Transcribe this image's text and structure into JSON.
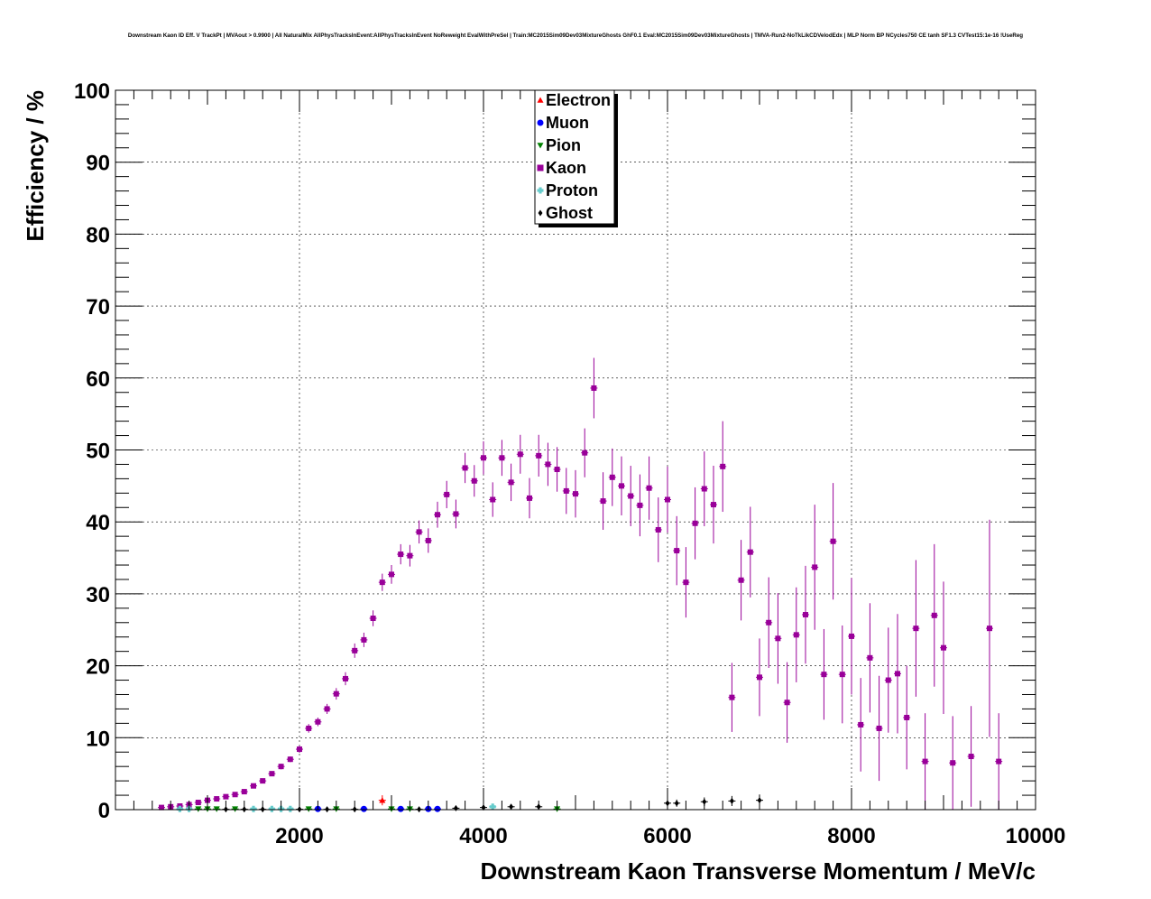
{
  "chart_data": {
    "type": "scatter",
    "title": "Downstream Kaon ID Eff. V TrackPt | MVAout > 0.9900 | All NaturalMix AllPhysTracksInEvent:AllPhysTracksInEvent NoReweight EvalWithPreSel | Train:MC2015Sim09Dev03MixtureGhosts GhF0.1 Eval:MC2015Sim09Dev03MixtureGhosts | TMVA-Run2-NoTkLikCDVelodEdx | MLP Norm BP NCycles750 CE tanh SF1.3 CVTest15:1e-16 !UseReg",
    "xlabel": "Downstream Kaon Transverse Momentum / MeV/c",
    "ylabel": "Efficiency / %",
    "xlim": [
      0,
      10000
    ],
    "ylim": [
      0,
      100
    ],
    "x_ticks": [
      "2000",
      "4000",
      "6000",
      "8000",
      "10000"
    ],
    "y_ticks": [
      "0",
      "10",
      "20",
      "30",
      "40",
      "50",
      "60",
      "70",
      "80",
      "90",
      "100"
    ],
    "grid": true,
    "legend_position": "top-center",
    "series": [
      {
        "name": "Electron",
        "color": "#ff0000",
        "marker": "triangle-up",
        "points": [
          [
            2900,
            1.3,
            0.7
          ]
        ]
      },
      {
        "name": "Muon",
        "color": "#0000ff",
        "marker": "circle",
        "points": [
          [
            2200,
            0.1,
            0
          ],
          [
            2700,
            0.1,
            0
          ],
          [
            3100,
            0.1,
            0
          ],
          [
            3400,
            0.1,
            0
          ],
          [
            3500,
            0.1,
            0
          ]
        ]
      },
      {
        "name": "Pion",
        "color": "#008000",
        "marker": "triangle-down",
        "points": [
          [
            900,
            0.1,
            0
          ],
          [
            1000,
            0.1,
            0
          ],
          [
            1100,
            0.1,
            0
          ],
          [
            1300,
            0.1,
            0
          ],
          [
            2100,
            0.1,
            0
          ],
          [
            2400,
            0.1,
            0
          ],
          [
            3000,
            0.1,
            0
          ],
          [
            3200,
            0.1,
            0
          ],
          [
            4800,
            0.1,
            0
          ]
        ]
      },
      {
        "name": "Kaon",
        "color": "#990099",
        "marker": "square",
        "points": [
          [
            500,
            0.3,
            0.1
          ],
          [
            600,
            0.4,
            0.1
          ],
          [
            700,
            0.5,
            0.1
          ],
          [
            800,
            0.7,
            0.1
          ],
          [
            900,
            1.0,
            0.1
          ],
          [
            1000,
            1.3,
            0.2
          ],
          [
            1100,
            1.5,
            0.2
          ],
          [
            1200,
            1.8,
            0.2
          ],
          [
            1300,
            2.1,
            0.2
          ],
          [
            1400,
            2.5,
            0.2
          ],
          [
            1500,
            3.3,
            0.3
          ],
          [
            1600,
            4.0,
            0.3
          ],
          [
            1700,
            5.0,
            0.3
          ],
          [
            1800,
            6.0,
            0.4
          ],
          [
            1900,
            7.0,
            0.4
          ],
          [
            2000,
            8.4,
            0.5
          ],
          [
            2100,
            11.3,
            0.6
          ],
          [
            2200,
            12.2,
            0.6
          ],
          [
            2300,
            14.0,
            0.7
          ],
          [
            2400,
            16.1,
            0.8
          ],
          [
            2500,
            18.2,
            0.9
          ],
          [
            2600,
            22.1,
            1.0
          ],
          [
            2700,
            23.6,
            1.0
          ],
          [
            2800,
            26.6,
            1.1
          ],
          [
            2900,
            31.6,
            1.2
          ],
          [
            3000,
            32.7,
            1.3
          ],
          [
            3100,
            35.5,
            1.4
          ],
          [
            3200,
            35.3,
            1.5
          ],
          [
            3300,
            38.6,
            1.6
          ],
          [
            3400,
            37.4,
            1.7
          ],
          [
            3500,
            41.0,
            1.8
          ],
          [
            3600,
            43.8,
            1.9
          ],
          [
            3700,
            41.1,
            2.0
          ],
          [
            3800,
            47.5,
            2.1
          ],
          [
            3900,
            45.7,
            2.2
          ],
          [
            4000,
            48.9,
            2.3
          ],
          [
            4100,
            43.1,
            2.4
          ],
          [
            4200,
            48.9,
            2.5
          ],
          [
            4300,
            45.5,
            2.6
          ],
          [
            4400,
            49.4,
            2.7
          ],
          [
            4500,
            43.3,
            2.8
          ],
          [
            4600,
            49.2,
            2.9
          ],
          [
            4700,
            48.0,
            3.0
          ],
          [
            4800,
            47.3,
            3.1
          ],
          [
            4900,
            44.3,
            3.2
          ],
          [
            5000,
            43.9,
            3.3
          ],
          [
            5100,
            49.6,
            3.4
          ],
          [
            5200,
            58.6,
            4.2
          ],
          [
            5300,
            42.9,
            4.0
          ],
          [
            5400,
            46.2,
            4.0
          ],
          [
            5500,
            45.0,
            4.1
          ],
          [
            5600,
            43.6,
            4.2
          ],
          [
            5700,
            42.3,
            4.3
          ],
          [
            5800,
            44.7,
            4.4
          ],
          [
            5900,
            38.9,
            4.5
          ],
          [
            6000,
            43.1,
            4.6
          ],
          [
            6100,
            36.0,
            4.8
          ],
          [
            6200,
            31.6,
            4.9
          ],
          [
            6300,
            39.8,
            5.0
          ],
          [
            6400,
            44.6,
            5.2
          ],
          [
            6500,
            42.4,
            5.4
          ],
          [
            6600,
            47.7,
            6.3
          ],
          [
            6700,
            15.6,
            4.8
          ],
          [
            6800,
            31.9,
            5.6
          ],
          [
            6900,
            35.8,
            6.3
          ],
          [
            7000,
            18.4,
            5.4
          ],
          [
            7100,
            26.0,
            6.3
          ],
          [
            7200,
            23.8,
            6.3
          ],
          [
            7300,
            14.9,
            5.6
          ],
          [
            7400,
            24.3,
            6.6
          ],
          [
            7500,
            27.1,
            6.8
          ],
          [
            7600,
            33.7,
            8.7
          ],
          [
            7700,
            18.8,
            6.3
          ],
          [
            7800,
            37.3,
            8.1
          ],
          [
            7900,
            18.8,
            6.8
          ],
          [
            8000,
            24.1,
            8.1
          ],
          [
            8100,
            11.8,
            6.5
          ],
          [
            8200,
            21.1,
            7.6
          ],
          [
            8300,
            11.3,
            7.3
          ],
          [
            8400,
            18.0,
            7.3
          ],
          [
            8500,
            18.9,
            8.3
          ],
          [
            8600,
            12.8,
            7.2
          ],
          [
            8700,
            25.2,
            9.5
          ],
          [
            8800,
            6.7,
            6.7
          ],
          [
            8900,
            27.0,
            9.9
          ],
          [
            9000,
            22.5,
            9.2
          ],
          [
            9100,
            6.5,
            6.5
          ],
          [
            9300,
            7.4,
            7.0
          ],
          [
            9500,
            25.2,
            15.1
          ],
          [
            9600,
            6.7,
            6.7
          ]
        ]
      },
      {
        "name": "Proton",
        "color": "#66cccc",
        "marker": "cross",
        "points": [
          [
            700,
            0.1,
            0
          ],
          [
            800,
            0.1,
            0
          ],
          [
            1500,
            0.1,
            0
          ],
          [
            1700,
            0.1,
            0
          ],
          [
            1800,
            0.1,
            0
          ],
          [
            1900,
            0.1,
            0
          ],
          [
            4100,
            0.4,
            0.3
          ]
        ]
      },
      {
        "name": "Ghost",
        "color": "#000000",
        "marker": "diamond",
        "points": [
          [
            1200,
            0.05,
            0
          ],
          [
            1400,
            0.05,
            0
          ],
          [
            1600,
            0.05,
            0
          ],
          [
            2000,
            0.05,
            0
          ],
          [
            2300,
            0.05,
            0
          ],
          [
            2600,
            0.05,
            0
          ],
          [
            3300,
            0.05,
            0
          ],
          [
            3700,
            0.2,
            0.1
          ],
          [
            4000,
            0.3,
            0.1
          ],
          [
            4300,
            0.4,
            0.2
          ],
          [
            4600,
            0.4,
            0.2
          ],
          [
            6000,
            0.9,
            0.5
          ],
          [
            6100,
            0.9,
            0.5
          ],
          [
            6400,
            1.1,
            0.6
          ],
          [
            6700,
            1.2,
            0.7
          ],
          [
            7000,
            1.3,
            0.8
          ]
        ]
      }
    ]
  }
}
